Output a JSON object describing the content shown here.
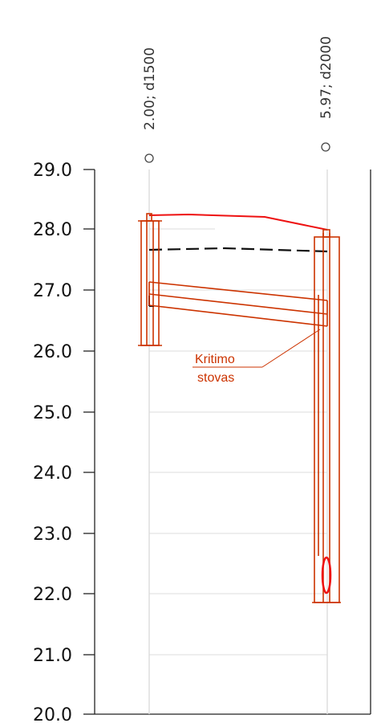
{
  "diagram": {
    "y_axis": {
      "ticks": [
        "29.0",
        "28.0",
        "27.0",
        "26.0",
        "25.0",
        "24.0",
        "23.0",
        "22.0",
        "21.0",
        "20.0"
      ]
    },
    "wells": [
      {
        "label": "2.00; d1500"
      },
      {
        "label": "5.97; d2000"
      }
    ],
    "annotation": {
      "line1": "Kritimo",
      "line2": "stovas"
    },
    "colors": {
      "structure": "#cc3300",
      "ground_line": "#ee1111",
      "water_level": "#111111",
      "grid": "#dddddd",
      "axis": "#222222"
    }
  }
}
